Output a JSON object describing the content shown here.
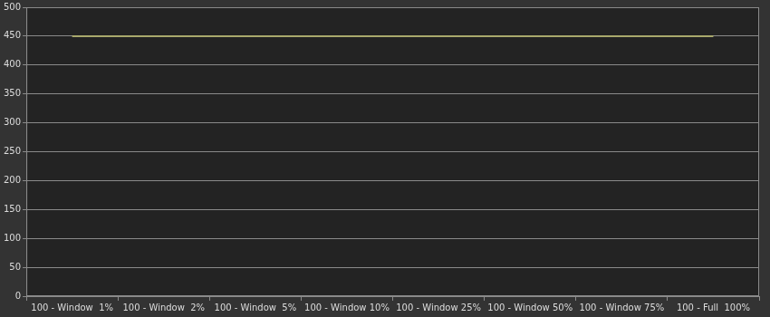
{
  "chart_data": {
    "type": "line",
    "categories": [
      "100 - Window  1%",
      "100 - Window  2%",
      "100 - Window  5%",
      "100 - Window 10%",
      "100 - Window 25%",
      "100 - Window 50%",
      "100 - Window 75%",
      "100 - Full  100%"
    ],
    "values": [
      450,
      450,
      450,
      450,
      450,
      450,
      450,
      450
    ],
    "color": "#a8a86c",
    "ylim": [
      0,
      500
    ],
    "yticks": [
      0,
      50,
      100,
      150,
      200,
      250,
      300,
      350,
      400,
      450,
      500
    ],
    "grid": true
  }
}
